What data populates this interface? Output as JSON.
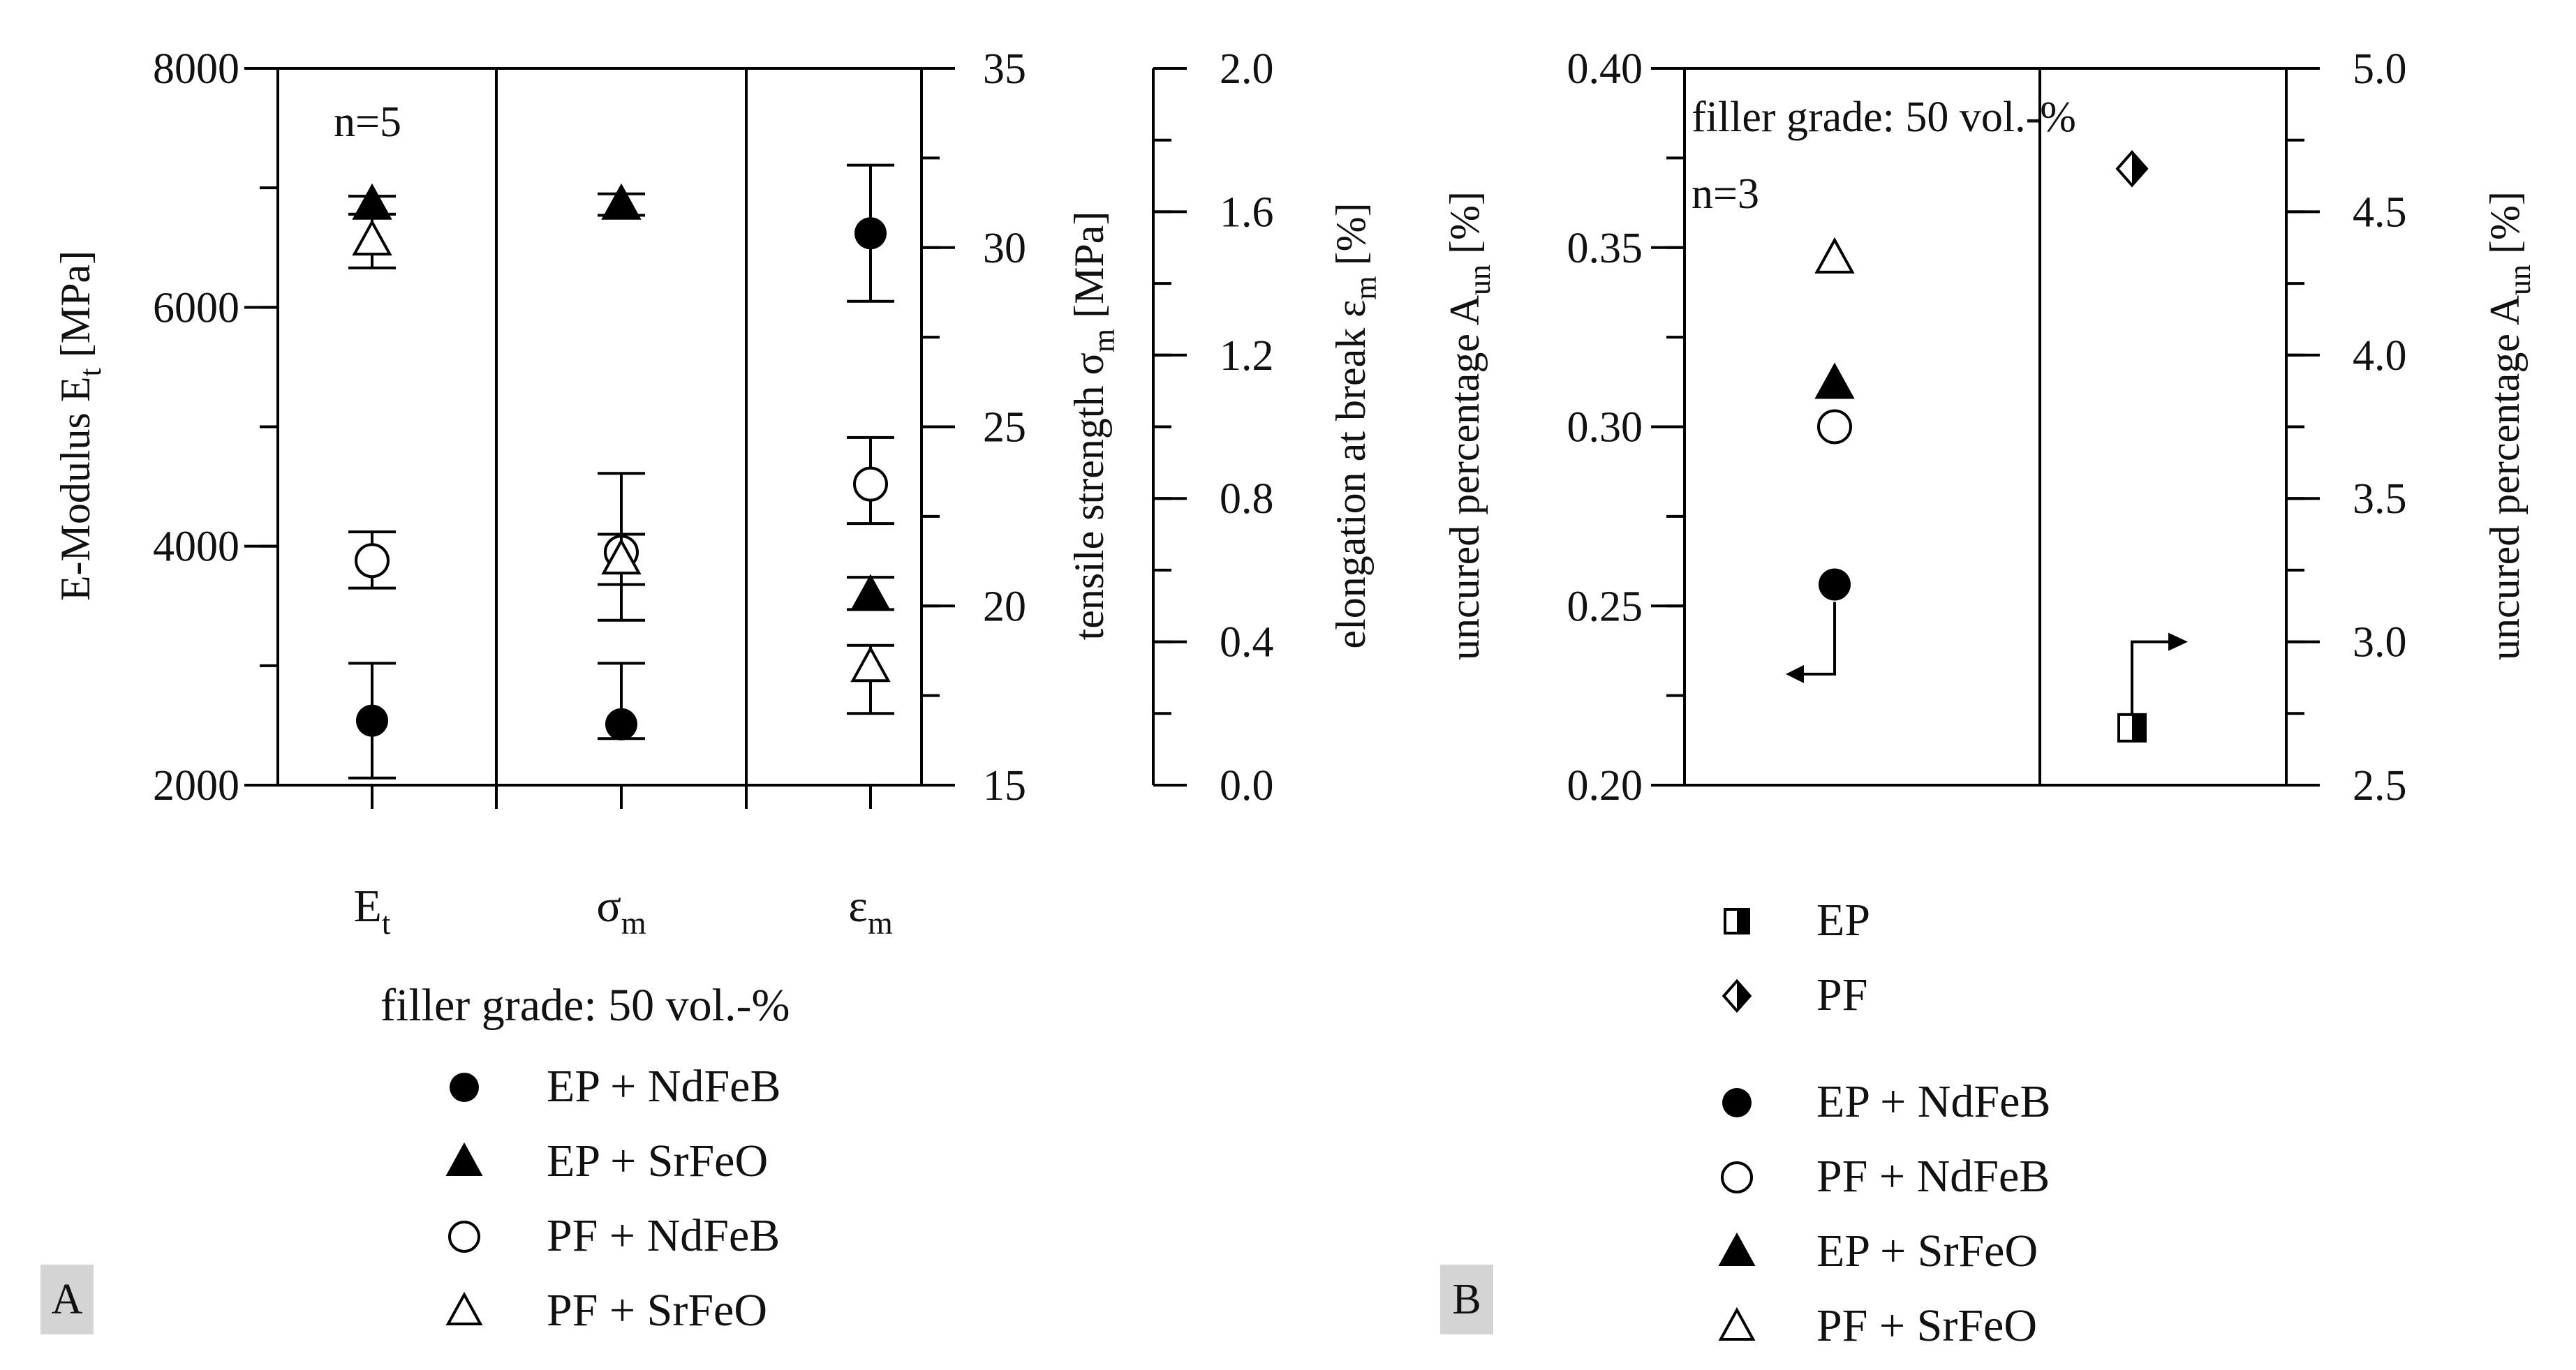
{
  "chart_data": [
    {
      "panel": "A",
      "type": "scatter",
      "annotation": "n=5",
      "categories": [
        "E",
        "σ",
        "ε"
      ],
      "category_subscripts": [
        "t",
        "m",
        "m"
      ],
      "axes": {
        "E_t": {
          "label": "E-Modulus E",
          "label_subscript": "t",
          "label_unit": " [MPa]",
          "ylim": [
            2000,
            8000
          ],
          "ticks": [
            "2000",
            "4000",
            "6000",
            "8000"
          ],
          "minor_step": 1000
        },
        "sigma_m": {
          "label": "tensile strength σ",
          "label_subscript": "m",
          "label_unit": " [MPa]",
          "ylim": [
            15,
            35
          ],
          "ticks": [
            "15",
            "20",
            "25",
            "30",
            "35"
          ],
          "minor_step": 2.5
        },
        "eps_m": {
          "label": "elongation at break ε",
          "label_subscript": "m",
          "label_unit": " [%]",
          "ylim": [
            0.0,
            2.0
          ],
          "ticks": [
            "0.0",
            "0.4",
            "0.8",
            "1.2",
            "1.6",
            "2.0"
          ],
          "minor_step": 0.2
        }
      },
      "series": [
        {
          "name": "EP + NdFeB",
          "marker": "filled-circle",
          "values": [
            2540,
            16.7,
            1.54
          ],
          "err_low": [
            2060,
            16.3,
            1.35
          ],
          "err_high": [
            3020,
            18.4,
            1.73
          ]
        },
        {
          "name": "EP + SrFeO",
          "marker": "filled-triangle",
          "values": [
            6860,
            31.2,
            0.53
          ],
          "err_low": [
            6780,
            30.9,
            0.49
          ],
          "err_high": [
            6930,
            31.5,
            0.58
          ]
        },
        {
          "name": "PF + NdFeB",
          "marker": "open-circle",
          "values": [
            3880,
            21.5,
            0.84
          ],
          "err_low": [
            3650,
            19.6,
            0.73
          ],
          "err_high": [
            4120,
            23.7,
            0.97
          ]
        },
        {
          "name": "PF + SrFeO",
          "marker": "open-triangle",
          "values": [
            6560,
            21.3,
            0.33
          ],
          "err_low": [
            6330,
            20.6,
            0.2
          ],
          "err_high": [
            6780,
            22.0,
            0.39
          ]
        }
      ],
      "legend_title": "filler grade: 50 vol.-%"
    },
    {
      "panel": "B",
      "type": "scatter",
      "annotations": [
        "filler grade: 50 vol.-%",
        "n=3"
      ],
      "axes": {
        "left": {
          "label": "uncured percentage A",
          "label_subscript": "un",
          "label_unit": " [%]",
          "ylim": [
            0.2,
            0.4
          ],
          "ticks": [
            "0.20",
            "0.25",
            "0.30",
            "0.35",
            "0.40"
          ],
          "minor_step": 0.025
        },
        "right": {
          "label": "uncured percentage A",
          "label_subscript": "un",
          "label_unit": " [%]",
          "ylim": [
            2.5,
            5.0
          ],
          "ticks": [
            "2.5",
            "3.0",
            "3.5",
            "4.0",
            "4.5",
            "5.0"
          ],
          "minor_step": 0.25
        }
      },
      "composites_left_axis": [
        {
          "name": "EP + NdFeB",
          "marker": "filled-circle",
          "value": 0.256
        },
        {
          "name": "PF + NdFeB",
          "marker": "open-circle",
          "value": 0.3
        },
        {
          "name": "EP + SrFeO",
          "marker": "filled-triangle",
          "value": 0.312
        },
        {
          "name": "PF + SrFeO",
          "marker": "open-triangle",
          "value": 0.347
        }
      ],
      "pure_resins_right_axis": [
        {
          "name": "EP",
          "marker": "half-square",
          "value": 2.7
        },
        {
          "name": "PF",
          "marker": "half-diamond",
          "value": 4.65
        }
      ],
      "legend_resins": [
        "EP",
        "PF"
      ],
      "legend_composites": [
        "EP + NdFeB",
        "PF + NdFeB",
        "EP + SrFeO",
        "PF + SrFeO"
      ]
    }
  ]
}
